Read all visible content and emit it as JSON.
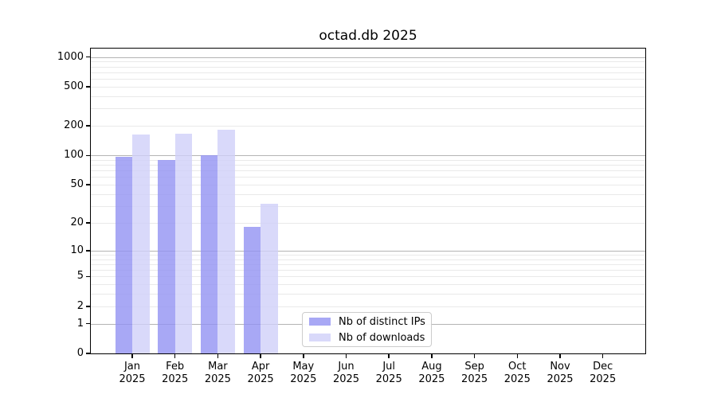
{
  "title": "octad.db 2025",
  "chart_data": {
    "type": "bar",
    "title": "octad.db 2025",
    "categories": [
      "Jan",
      "Feb",
      "Mar",
      "Apr",
      "May",
      "Jun",
      "Jul",
      "Aug",
      "Sep",
      "Oct",
      "Nov",
      "Dec"
    ],
    "year": "2025",
    "series": [
      {
        "key": "ips",
        "name": "Nb of distinct IPs",
        "color": "#9292F2",
        "values": [
          97,
          90,
          100,
          18,
          0,
          0,
          0,
          0,
          0,
          0,
          0,
          0
        ]
      },
      {
        "key": "downloads",
        "name": "Nb of downloads",
        "color": "#D0D0F9",
        "values": [
          165,
          167,
          184,
          32,
          0,
          0,
          0,
          0,
          0,
          0,
          0,
          0
        ]
      }
    ],
    "bar_alpha": 0.8,
    "yscale": "log1p",
    "ylim": [
      0,
      1220
    ],
    "yticks": [
      0,
      1,
      2,
      5,
      10,
      20,
      50,
      100,
      200,
      500,
      1000
    ],
    "grid_major": [
      1,
      10,
      100,
      1000
    ],
    "grid_minor": [
      2,
      3,
      4,
      5,
      6,
      7,
      8,
      9,
      20,
      30,
      40,
      50,
      60,
      70,
      80,
      90,
      200,
      300,
      400,
      500,
      600,
      700,
      800,
      900
    ],
    "legend_position": "bottom-center-inside",
    "grid": "on"
  },
  "colors": {
    "grid_major": "#b4b4b4",
    "grid_minor": "#e9e9e9",
    "spine": "#000000",
    "text": "#000000",
    "background": "#ffffff"
  }
}
